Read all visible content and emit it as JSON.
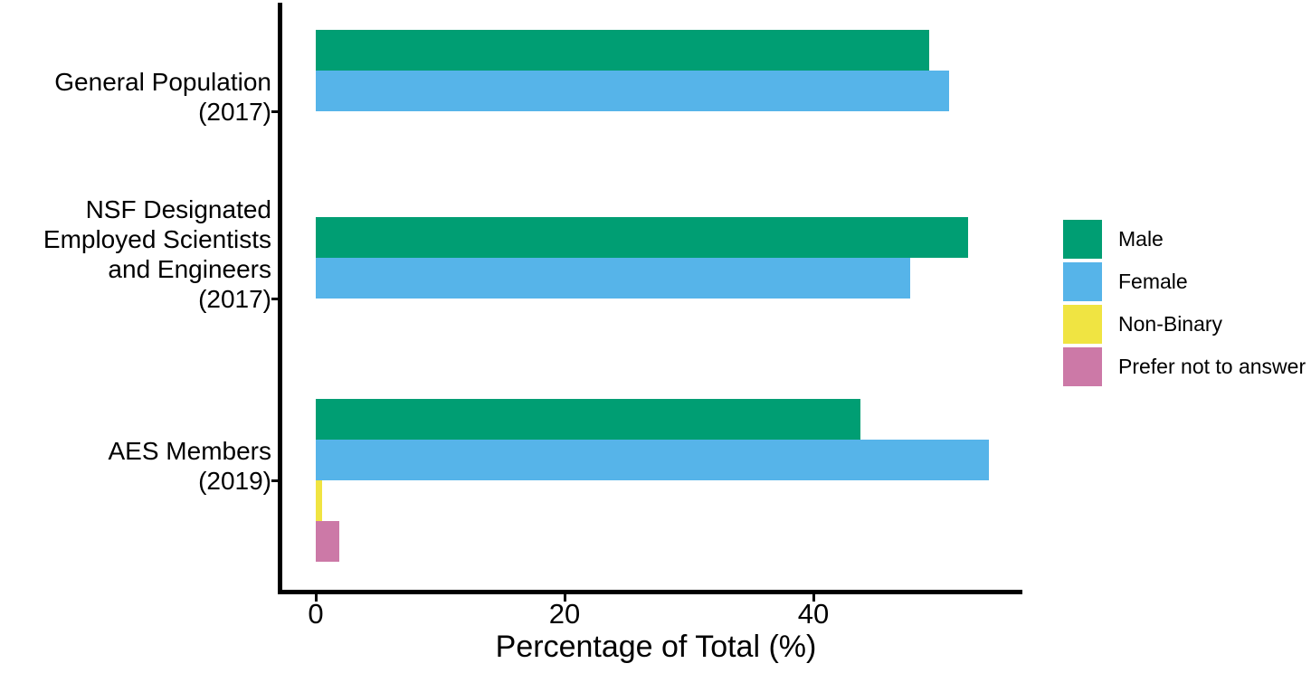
{
  "chart_data": {
    "type": "bar",
    "orientation": "horizontal",
    "title": "",
    "xlabel": "Percentage of Total (%)",
    "ylabel": "",
    "x_ticks": [
      0,
      20,
      40
    ],
    "xlim": [
      0,
      56.8
    ],
    "grid": false,
    "legend_position": "right",
    "axis_color": "#000000",
    "text_color": "#000000",
    "categories": [
      "General Population (2017)",
      "NSF Designated Employed Scientists and Engineers (2017)",
      "AES Members (2019)"
    ],
    "category_label_lines": [
      [
        "General Population",
        "(2017)"
      ],
      [
        "NSF Designated",
        "Employed Scientists",
        "and Engineers",
        "(2017)"
      ],
      [
        "AES Members",
        "(2019)"
      ]
    ],
    "series": [
      {
        "name": "Male",
        "color": "#009E73",
        "values": [
          49.3,
          52.4,
          43.8
        ]
      },
      {
        "name": "Female",
        "color": "#56B4E9",
        "values": [
          50.9,
          47.8,
          54.1
        ]
      },
      {
        "name": "Non-Binary",
        "color": "#F0E442",
        "values": [
          null,
          null,
          0.5
        ]
      },
      {
        "name": "Prefer not to answer",
        "color": "#CC79A7",
        "values": [
          null,
          null,
          1.9
        ]
      }
    ]
  }
}
